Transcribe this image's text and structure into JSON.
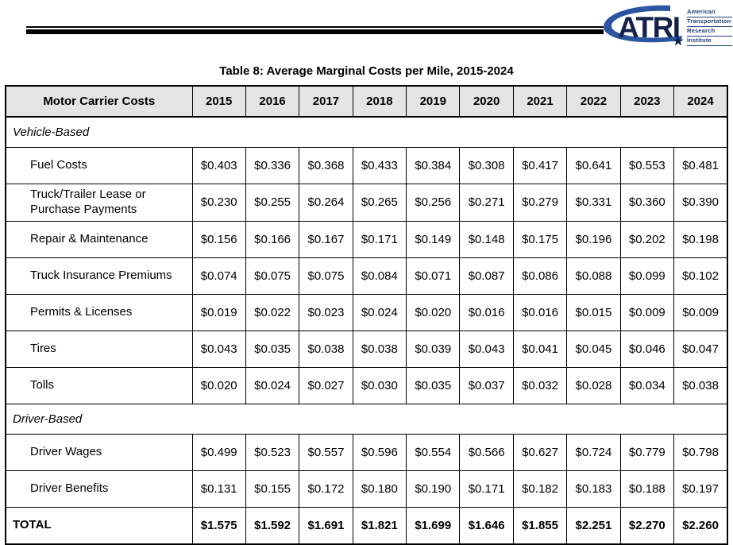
{
  "logo": {
    "acronym": "ATRI",
    "org_lines": [
      "American",
      "Transportation",
      "Research",
      "Institute"
    ],
    "colors": {
      "navy": "#14224a",
      "blue": "#2b55a3",
      "text_navy": "#1c3f7d"
    }
  },
  "chart_data": {
    "type": "table",
    "title": "Table 8: Average Marginal Costs per Mile, 2015-2024",
    "columns": [
      "Motor Carrier Costs",
      "2015",
      "2016",
      "2017",
      "2018",
      "2019",
      "2020",
      "2021",
      "2022",
      "2023",
      "2024"
    ],
    "rows": [
      {
        "type": "section",
        "label": "Vehicle-Based"
      },
      {
        "type": "item",
        "label": "Fuel Costs",
        "values": [
          "$0.403",
          "$0.336",
          "$0.368",
          "$0.433",
          "$0.384",
          "$0.308",
          "$0.417",
          "$0.641",
          "$0.553",
          "$0.481"
        ]
      },
      {
        "type": "item",
        "label": "Truck/Trailer Lease or Purchase Payments",
        "values": [
          "$0.230",
          "$0.255",
          "$0.264",
          "$0.265",
          "$0.256",
          "$0.271",
          "$0.279",
          "$0.331",
          "$0.360",
          "$0.390"
        ]
      },
      {
        "type": "item",
        "label": "Repair & Maintenance",
        "values": [
          "$0.156",
          "$0.166",
          "$0.167",
          "$0.171",
          "$0.149",
          "$0.148",
          "$0.175",
          "$0.196",
          "$0.202",
          "$0.198"
        ]
      },
      {
        "type": "item",
        "label": "Truck Insurance Premiums",
        "values": [
          "$0.074",
          "$0.075",
          "$0.075",
          "$0.084",
          "$0.071",
          "$0.087",
          "$0.086",
          "$0.088",
          "$0.099",
          "$0.102"
        ]
      },
      {
        "type": "item",
        "label": "Permits & Licenses",
        "values": [
          "$0.019",
          "$0.022",
          "$0.023",
          "$0.024",
          "$0.020",
          "$0.016",
          "$0.016",
          "$0.015",
          "$0.009",
          "$0.009"
        ]
      },
      {
        "type": "item",
        "label": "Tires",
        "values": [
          "$0.043",
          "$0.035",
          "$0.038",
          "$0.038",
          "$0.039",
          "$0.043",
          "$0.041",
          "$0.045",
          "$0.046",
          "$0.047"
        ]
      },
      {
        "type": "item",
        "label": "Tolls",
        "values": [
          "$0.020",
          "$0.024",
          "$0.027",
          "$0.030",
          "$0.035",
          "$0.037",
          "$0.032",
          "$0.028",
          "$0.034",
          "$0.038"
        ]
      },
      {
        "type": "section",
        "label": "Driver-Based"
      },
      {
        "type": "item",
        "label": "Driver Wages",
        "values": [
          "$0.499",
          "$0.523",
          "$0.557",
          "$0.596",
          "$0.554",
          "$0.566",
          "$0.627",
          "$0.724",
          "$0.779",
          "$0.798"
        ]
      },
      {
        "type": "item",
        "label": "Driver Benefits",
        "values": [
          "$0.131",
          "$0.155",
          "$0.172",
          "$0.180",
          "$0.190",
          "$0.171",
          "$0.182",
          "$0.183",
          "$0.188",
          "$0.197"
        ]
      },
      {
        "type": "total",
        "label": "TOTAL",
        "values": [
          "$1.575",
          "$1.592",
          "$1.691",
          "$1.821",
          "$1.699",
          "$1.646",
          "$1.855",
          "$2.251",
          "$2.270",
          "$2.260"
        ]
      }
    ]
  }
}
